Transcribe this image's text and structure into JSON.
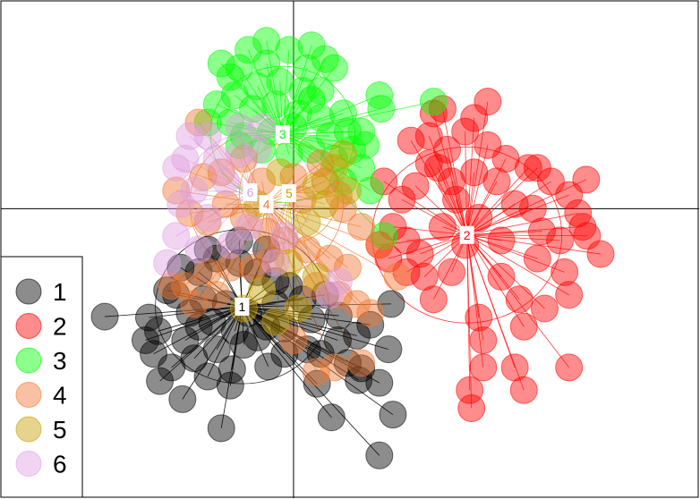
{
  "chart_data": {
    "type": "scatter",
    "title": "",
    "xlabel": "",
    "ylabel": "",
    "xlim": [
      -3.25,
      4.5
    ],
    "ylim": [
      -3.2,
      2.3
    ],
    "axes_cross": [
      0,
      0
    ],
    "grid": false,
    "legend_position": "bottom-left",
    "point_alpha": 0.45,
    "series": [
      {
        "name": "1",
        "color": "#000000",
        "centroid": [
          -0.57,
          -1.08
        ],
        "ellipse": {
          "rx": 0.96,
          "ry": 0.85
        },
        "points": [
          [
            -2.09,
            -1.19
          ],
          [
            -1.64,
            -1.45
          ],
          [
            -1.48,
            -1.9
          ],
          [
            -1.23,
            -2.1
          ],
          [
            -0.8,
            -2.42
          ],
          [
            -0.68,
            -1.77
          ],
          [
            -0.28,
            -1.74
          ],
          [
            0.26,
            -1.93
          ],
          [
            0.3,
            -1.6
          ],
          [
            0.49,
            -1.45
          ],
          [
            0.7,
            -1.4
          ],
          [
            0.75,
            -1.76
          ],
          [
            0.95,
            -1.92
          ],
          [
            1.05,
            -1.55
          ],
          [
            1.1,
            -2.27
          ],
          [
            0.72,
            -1.89
          ],
          [
            0.42,
            -2.3
          ],
          [
            0.95,
            -2.72
          ],
          [
            1.08,
            -1.05
          ],
          [
            0.85,
            -1.28
          ],
          [
            0.5,
            -1.18
          ],
          [
            0.2,
            -1.22
          ],
          [
            -0.1,
            -1.32
          ],
          [
            -0.4,
            -1.42
          ],
          [
            -0.65,
            -1.35
          ],
          [
            -0.9,
            -1.25
          ],
          [
            -1.15,
            -1.15
          ],
          [
            -1.3,
            -0.95
          ],
          [
            -1.4,
            -0.9
          ],
          [
            -1.25,
            -0.65
          ],
          [
            -1.05,
            -0.7
          ],
          [
            -0.85,
            -0.55
          ],
          [
            -0.6,
            -0.6
          ],
          [
            -0.4,
            -0.7
          ],
          [
            -0.2,
            -0.8
          ],
          [
            -0.05,
            -0.85
          ],
          [
            -0.3,
            -0.45
          ],
          [
            -0.6,
            -0.35
          ],
          [
            -0.95,
            -0.45
          ],
          [
            -1.55,
            -1.6
          ],
          [
            -1.35,
            -1.75
          ],
          [
            -1.1,
            -1.65
          ],
          [
            -0.85,
            -1.55
          ],
          [
            -0.55,
            -1.5
          ],
          [
            -0.3,
            -1.3
          ],
          [
            -0.75,
            -1.05
          ],
          [
            -1.0,
            -1.0
          ],
          [
            -0.5,
            -1.15
          ],
          [
            -0.2,
            -1.05
          ],
          [
            0.1,
            -1.0
          ],
          [
            0.35,
            -0.95
          ],
          [
            -1.6,
            -1.2
          ],
          [
            -1.5,
            -1.35
          ],
          [
            -0.95,
            -1.85
          ],
          [
            -0.7,
            -1.95
          ],
          [
            0.6,
            -1.7
          ],
          [
            0.15,
            -1.55
          ],
          [
            -0.1,
            -1.6
          ],
          [
            -1.2,
            -1.45
          ],
          [
            -1.05,
            -1.3
          ]
        ]
      },
      {
        "name": "2",
        "color": "#ff0000",
        "centroid": [
          1.92,
          -0.29
        ],
        "ellipse": {
          "rx": 1.05,
          "ry": 0.97
        },
        "points": [
          [
            3.24,
            0.32
          ],
          [
            3.15,
            -0.05
          ],
          [
            3.4,
            -0.5
          ],
          [
            3.05,
            -0.95
          ],
          [
            3.0,
            -0.7
          ],
          [
            2.78,
            -1.1
          ],
          [
            2.55,
            -1.3
          ],
          [
            2.45,
            -1.75
          ],
          [
            2.55,
            -2.0
          ],
          [
            3.05,
            -1.75
          ],
          [
            2.1,
            -1.45
          ],
          [
            2.1,
            -1.75
          ],
          [
            1.95,
            -2.0
          ],
          [
            1.97,
            -2.2
          ],
          [
            2.05,
            -1.2
          ],
          [
            1.55,
            -1.0
          ],
          [
            1.75,
            -0.7
          ],
          [
            1.4,
            -0.5
          ],
          [
            1.25,
            -0.35
          ],
          [
            1.1,
            -0.2
          ],
          [
            1.2,
            0.1
          ],
          [
            1.35,
            0.25
          ],
          [
            1.5,
            0.5
          ],
          [
            1.7,
            0.65
          ],
          [
            1.9,
            0.85
          ],
          [
            2.15,
            1.18
          ],
          [
            2.0,
            1.0
          ],
          [
            1.55,
            1.05
          ],
          [
            1.75,
            0.3
          ],
          [
            2.25,
            0.3
          ],
          [
            2.45,
            0.05
          ],
          [
            2.65,
            0.0
          ],
          [
            2.85,
            0.3
          ],
          [
            2.6,
            0.45
          ],
          [
            2.75,
            -0.25
          ],
          [
            2.3,
            -0.35
          ],
          [
            2.3,
            -0.75
          ],
          [
            2.7,
            -0.55
          ],
          [
            2.95,
            -0.35
          ],
          [
            3.2,
            -0.2
          ],
          [
            1.9,
            -0.4
          ],
          [
            1.65,
            -0.2
          ],
          [
            1.45,
            -0.75
          ],
          [
            1.25,
            -0.7
          ],
          [
            1.05,
            -0.55
          ],
          [
            0.95,
            -0.4
          ],
          [
            1.0,
            0.3
          ],
          [
            1.65,
            1.1
          ],
          [
            2.15,
            0.7
          ],
          [
            2.35,
            0.55
          ],
          [
            1.3,
            0.75
          ],
          [
            1.5,
            0.8
          ],
          [
            1.8,
            0.1
          ],
          [
            2.0,
            0.4
          ],
          [
            2.05,
            -0.1
          ],
          [
            2.5,
            -1.0
          ],
          [
            3.25,
            -0.3
          ],
          [
            3.05,
            0.15
          ],
          [
            2.7,
            0.45
          ],
          [
            1.6,
            0.45
          ]
        ]
      },
      {
        "name": "3",
        "color": "#00ff00",
        "centroid": [
          -0.12,
          0.82
        ],
        "ellipse": {
          "rx": 0.8,
          "ry": 0.75
        },
        "points": [
          [
            -0.8,
            1.6
          ],
          [
            -0.7,
            1.45
          ],
          [
            -0.5,
            1.75
          ],
          [
            -0.3,
            1.85
          ],
          [
            -0.05,
            1.75
          ],
          [
            0.2,
            1.8
          ],
          [
            0.35,
            1.65
          ],
          [
            0.45,
            1.55
          ],
          [
            0.3,
            1.3
          ],
          [
            0.1,
            1.3
          ],
          [
            -0.15,
            1.4
          ],
          [
            -0.4,
            1.35
          ],
          [
            -0.65,
            1.25
          ],
          [
            -0.85,
            1.15
          ],
          [
            -0.95,
            0.95
          ],
          [
            -0.7,
            0.95
          ],
          [
            -0.45,
            1.1
          ],
          [
            -0.2,
            1.15
          ],
          [
            0.05,
            1.05
          ],
          [
            0.3,
            1.0
          ],
          [
            0.55,
            1.05
          ],
          [
            0.75,
            0.85
          ],
          [
            0.65,
            0.65
          ],
          [
            0.45,
            0.55
          ],
          [
            0.2,
            0.65
          ],
          [
            -0.05,
            0.6
          ],
          [
            -0.35,
            0.65
          ],
          [
            -0.6,
            0.7
          ],
          [
            0.95,
            1.25
          ],
          [
            0.97,
            1.1
          ],
          [
            1.55,
            1.18
          ],
          [
            0.75,
            0.45
          ],
          [
            0.85,
            0.2
          ],
          [
            0.55,
            0.3
          ],
          [
            0.0,
            0.9
          ],
          [
            -0.25,
            0.85
          ],
          [
            -0.55,
            0.8
          ],
          [
            0.15,
            1.55
          ],
          [
            -0.6,
            1.55
          ],
          [
            0.4,
            0.8
          ],
          [
            0.8,
            0.7
          ],
          [
            0.6,
            0.85
          ],
          [
            0.2,
            1.2
          ],
          [
            -0.3,
            1.6
          ],
          [
            1.0,
            -0.3
          ]
        ]
      },
      {
        "name": "4",
        "color": "#f07830",
        "centroid": [
          -0.3,
          0.05
        ],
        "ellipse": {
          "rx": 0.85,
          "ry": 0.8
        },
        "points": [
          [
            -1.05,
            0.95
          ],
          [
            -1.3,
            0.2
          ],
          [
            -1.15,
            -0.05
          ],
          [
            -0.95,
            -0.15
          ],
          [
            -0.75,
            0.05
          ],
          [
            -0.55,
            -0.1
          ],
          [
            -0.3,
            -0.25
          ],
          [
            -0.1,
            -0.35
          ],
          [
            0.15,
            -0.45
          ],
          [
            0.4,
            -0.55
          ],
          [
            0.6,
            -0.65
          ],
          [
            0.7,
            -1.05
          ],
          [
            0.85,
            -1.15
          ],
          [
            0.75,
            -1.7
          ],
          [
            0.45,
            -1.75
          ],
          [
            0.25,
            -1.8
          ],
          [
            0.0,
            -1.45
          ],
          [
            -0.25,
            -0.55
          ],
          [
            -0.45,
            -0.65
          ],
          [
            -0.7,
            -0.65
          ],
          [
            -0.95,
            -0.7
          ],
          [
            -1.2,
            -0.85
          ],
          [
            -1.35,
            -0.85
          ],
          [
            -1.1,
            -1.05
          ],
          [
            -0.85,
            -0.95
          ],
          [
            0.1,
            0.1
          ],
          [
            0.35,
            0.3
          ],
          [
            0.55,
            0.0
          ],
          [
            0.75,
            -0.2
          ],
          [
            0.95,
            -0.4
          ],
          [
            1.15,
            -0.75
          ],
          [
            0.5,
            -0.95
          ],
          [
            0.25,
            -0.85
          ],
          [
            -0.55,
            0.55
          ],
          [
            -0.8,
            0.4
          ],
          [
            -1.0,
            0.35
          ],
          [
            -0.35,
            0.3
          ],
          [
            0.0,
            0.35
          ],
          [
            0.3,
            0.5
          ],
          [
            0.5,
            0.15
          ]
        ]
      },
      {
        "name": "5",
        "color": "#c8a000",
        "centroid": [
          -0.05,
          0.17
        ],
        "ellipse": {
          "rx": 0.55,
          "ry": 0.55
        },
        "points": [
          [
            -0.55,
            -1.1
          ],
          [
            -0.2,
            -1.25
          ],
          [
            0.05,
            -1.1
          ],
          [
            -0.35,
            -0.9
          ],
          [
            0.25,
            -0.75
          ],
          [
            0.45,
            0.45
          ],
          [
            0.6,
            0.2
          ],
          [
            0.35,
            0.05
          ],
          [
            0.15,
            -0.15
          ],
          [
            -0.15,
            0.4
          ],
          [
            0.25,
            0.25
          ],
          [
            -0.4,
            0.05
          ],
          [
            0.55,
            0.6
          ],
          [
            -0.05,
            -0.6
          ]
        ]
      },
      {
        "name": "6",
        "color": "#e0a0e0",
        "centroid": [
          -0.48,
          0.18
        ],
        "ellipse": {
          "rx": 0.7,
          "ry": 0.65
        },
        "points": [
          [
            -1.2,
            0.55
          ],
          [
            -1.3,
            0.45
          ],
          [
            -1.1,
            0.2
          ],
          [
            -1.25,
            0.05
          ],
          [
            -1.3,
            -0.3
          ],
          [
            -1.05,
            -0.45
          ],
          [
            -0.95,
            -0.1
          ],
          [
            -0.75,
            0.3
          ],
          [
            -0.85,
            0.55
          ],
          [
            -0.6,
            0.6
          ],
          [
            -0.4,
            0.65
          ],
          [
            -0.35,
            0.9
          ],
          [
            -0.6,
            0.9
          ],
          [
            -1.4,
            -0.6
          ],
          [
            -0.2,
            -0.6
          ],
          [
            0.4,
            -0.95
          ],
          [
            0.5,
            -0.8
          ],
          [
            -0.1,
            -0.3
          ],
          [
            -0.5,
            -0.2
          ],
          [
            -0.7,
            -0.4
          ],
          [
            -0.95,
            0.8
          ],
          [
            -1.15,
            0.8
          ]
        ]
      }
    ]
  }
}
